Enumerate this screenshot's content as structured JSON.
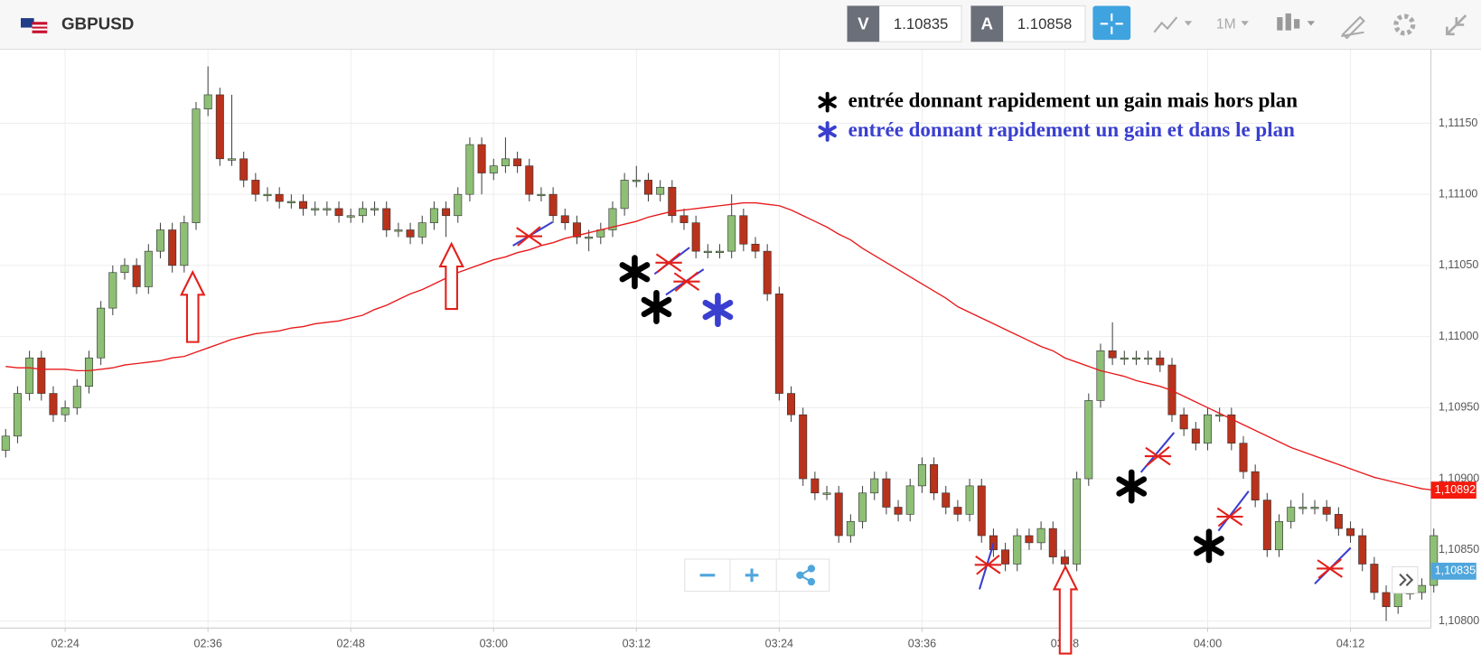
{
  "header": {
    "symbol": "GBPUSD",
    "sell_label": "V",
    "sell_price": "1.10835",
    "buy_label": "A",
    "buy_price": "1.10858",
    "timeframe": "1M"
  },
  "chart_data": {
    "type": "candlestick",
    "annotations": [
      {
        "text": "entrée donnant rapidement un gain mais hors plan",
        "color": "#000000"
      },
      {
        "text": "entrée donnant rapidement un gain et dans le plan",
        "color": "#3a3fd0"
      }
    ],
    "categories": [
      null,
      null,
      null,
      null,
      null,
      "02:24",
      null,
      null,
      null,
      null,
      null,
      null,
      null,
      null,
      null,
      null,
      null,
      "02:36",
      null,
      null,
      null,
      null,
      null,
      null,
      null,
      null,
      null,
      null,
      null,
      "02:48",
      null,
      null,
      null,
      null,
      null,
      null,
      null,
      null,
      null,
      null,
      null,
      "03:00",
      null,
      null,
      null,
      null,
      null,
      null,
      null,
      null,
      null,
      null,
      null,
      "03:12",
      null,
      null,
      null,
      null,
      null,
      null,
      null,
      null,
      null,
      null,
      null,
      "03:24",
      null,
      null,
      null,
      null,
      null,
      null,
      null,
      null,
      null,
      null,
      null,
      "03:36",
      null,
      null,
      null,
      null,
      null,
      null,
      null,
      null,
      null,
      null,
      null,
      "03:48",
      null,
      null,
      null,
      null,
      null,
      null,
      null,
      null,
      null,
      null,
      null,
      "04:00",
      null,
      null,
      null,
      null,
      null,
      null,
      null,
      null,
      null,
      null,
      null,
      "04:12",
      null,
      null,
      null,
      null,
      null,
      null,
      null
    ],
    "open": [
      1.1092,
      1.1093,
      1.1096,
      1.10985,
      1.1096,
      1.10945,
      1.1095,
      1.10965,
      1.10985,
      1.1102,
      1.11045,
      1.1105,
      1.11035,
      1.1106,
      1.11075,
      1.1105,
      1.1108,
      1.1116,
      1.1117,
      1.11125,
      1.11125,
      1.1111,
      1.111,
      1.111,
      1.11095,
      1.11095,
      1.1109,
      1.1109,
      1.1109,
      1.11085,
      1.11085,
      1.1109,
      1.1109,
      1.11075,
      1.11075,
      1.1107,
      1.1108,
      1.1109,
      1.11085,
      1.111,
      1.11135,
      1.11115,
      1.1112,
      1.11125,
      1.1112,
      1.111,
      1.111,
      1.11085,
      1.1108,
      1.1107,
      1.1107,
      1.11075,
      1.1109,
      1.1111,
      1.1111,
      1.111,
      1.11105,
      1.11085,
      1.1108,
      1.1106,
      1.1106,
      1.1106,
      1.11085,
      1.11065,
      1.1106,
      1.1103,
      1.1096,
      1.10945,
      1.109,
      1.1089,
      1.1089,
      1.1086,
      1.1087,
      1.1089,
      1.109,
      1.1088,
      1.10875,
      1.10895,
      1.1091,
      1.1089,
      1.1088,
      1.10875,
      1.10895,
      1.1086,
      1.1085,
      1.1084,
      1.1086,
      1.10855,
      1.10865,
      1.10845,
      1.1084,
      1.109,
      1.10955,
      1.1099,
      1.10985,
      1.10985,
      1.10985,
      1.10985,
      1.1098,
      1.10945,
      1.10935,
      1.10925,
      1.10945,
      1.10945,
      1.10925,
      1.10905,
      1.10885,
      1.1085,
      1.1087,
      1.1088,
      1.1088,
      1.1088,
      1.10875,
      1.10865,
      1.1086,
      1.1084,
      1.1082,
      1.1081,
      1.1082,
      1.1082,
      1.10825
    ],
    "high": [
      1.10935,
      1.10965,
      1.1099,
      1.1099,
      1.10965,
      1.10955,
      1.1097,
      1.1099,
      1.11025,
      1.1105,
      1.11055,
      1.11055,
      1.11065,
      1.1108,
      1.1108,
      1.11085,
      1.11165,
      1.1119,
      1.11175,
      1.1117,
      1.1113,
      1.11115,
      1.11105,
      1.11105,
      1.111,
      1.111,
      1.11095,
      1.11095,
      1.11095,
      1.1109,
      1.11095,
      1.11095,
      1.11095,
      1.1108,
      1.1108,
      1.11085,
      1.11095,
      1.11095,
      1.11105,
      1.1114,
      1.1114,
      1.11125,
      1.1114,
      1.1113,
      1.11125,
      1.11105,
      1.11105,
      1.1109,
      1.11085,
      1.11075,
      1.1108,
      1.11095,
      1.11115,
      1.1112,
      1.11115,
      1.1111,
      1.1111,
      1.1109,
      1.11085,
      1.11065,
      1.11065,
      1.111,
      1.1109,
      1.1107,
      1.11065,
      1.11035,
      1.10965,
      1.1095,
      1.10905,
      1.10895,
      1.10895,
      1.10875,
      1.10895,
      1.10905,
      1.10905,
      1.10885,
      1.109,
      1.10915,
      1.10915,
      1.10895,
      1.10885,
      1.109,
      1.109,
      1.10865,
      1.10855,
      1.10865,
      1.10865,
      1.1087,
      1.1087,
      1.1085,
      1.10905,
      1.1096,
      1.10995,
      1.1101,
      1.1099,
      1.1099,
      1.1099,
      1.1099,
      1.10985,
      1.1095,
      1.1094,
      1.1095,
      1.1095,
      1.1095,
      1.1093,
      1.1091,
      1.1089,
      1.10875,
      1.10885,
      1.1089,
      1.10885,
      1.10885,
      1.1088,
      1.1087,
      1.10865,
      1.10845,
      1.10825,
      1.10825,
      1.10825,
      1.1083,
      1.10865
    ],
    "low": [
      1.10915,
      1.10925,
      1.10955,
      1.10955,
      1.1094,
      1.1094,
      1.10945,
      1.1096,
      1.1098,
      1.11015,
      1.1104,
      1.1103,
      1.1103,
      1.11055,
      1.11045,
      1.11045,
      1.11075,
      1.11155,
      1.1112,
      1.1112,
      1.11105,
      1.11095,
      1.11095,
      1.1109,
      1.1109,
      1.11085,
      1.11085,
      1.11085,
      1.1108,
      1.1108,
      1.1108,
      1.11085,
      1.1107,
      1.1107,
      1.11065,
      1.11065,
      1.11075,
      1.1107,
      1.1108,
      1.11095,
      1.111,
      1.1111,
      1.11115,
      1.11115,
      1.11095,
      1.11095,
      1.1108,
      1.11075,
      1.11065,
      1.1106,
      1.11065,
      1.1107,
      1.11085,
      1.11105,
      1.11095,
      1.11095,
      1.1108,
      1.11075,
      1.11055,
      1.11055,
      1.11055,
      1.11055,
      1.1106,
      1.11055,
      1.11025,
      1.10955,
      1.1094,
      1.10895,
      1.10885,
      1.10885,
      1.10855,
      1.10855,
      1.10865,
      1.10885,
      1.10875,
      1.1087,
      1.1087,
      1.1089,
      1.10885,
      1.10875,
      1.1087,
      1.1087,
      1.10855,
      1.10845,
      1.10835,
      1.10835,
      1.1085,
      1.1085,
      1.1084,
      1.10835,
      1.10835,
      1.10895,
      1.1095,
      1.1098,
      1.1098,
      1.1098,
      1.1098,
      1.10975,
      1.1094,
      1.1093,
      1.1092,
      1.1092,
      1.1094,
      1.1092,
      1.109,
      1.1088,
      1.10845,
      1.10845,
      1.10865,
      1.10875,
      1.10875,
      1.1087,
      1.1086,
      1.10855,
      1.10835,
      1.10815,
      1.108,
      1.10805,
      1.10815,
      1.10815,
      1.1082
    ],
    "close": [
      1.1093,
      1.1096,
      1.10985,
      1.1096,
      1.10945,
      1.1095,
      1.10965,
      1.10985,
      1.1102,
      1.11045,
      1.1105,
      1.11035,
      1.1106,
      1.11075,
      1.1105,
      1.1108,
      1.1116,
      1.1117,
      1.11125,
      1.11125,
      1.1111,
      1.111,
      1.111,
      1.11095,
      1.11095,
      1.1109,
      1.1109,
      1.1109,
      1.11085,
      1.11085,
      1.1109,
      1.1109,
      1.11075,
      1.11075,
      1.1107,
      1.1108,
      1.1109,
      1.11085,
      1.111,
      1.11135,
      1.11115,
      1.1112,
      1.11125,
      1.1112,
      1.111,
      1.111,
      1.11085,
      1.1108,
      1.1107,
      1.1107,
      1.11075,
      1.1109,
      1.1111,
      1.1111,
      1.111,
      1.11105,
      1.11085,
      1.1108,
      1.1106,
      1.1106,
      1.1106,
      1.11085,
      1.11065,
      1.1106,
      1.1103,
      1.1096,
      1.10945,
      1.109,
      1.1089,
      1.1089,
      1.1086,
      1.1087,
      1.1089,
      1.109,
      1.1088,
      1.10875,
      1.10895,
      1.1091,
      1.1089,
      1.1088,
      1.10875,
      1.10895,
      1.1086,
      1.1085,
      1.1084,
      1.1086,
      1.10855,
      1.10865,
      1.10845,
      1.1084,
      1.109,
      1.10955,
      1.1099,
      1.10985,
      1.10985,
      1.10985,
      1.10985,
      1.1098,
      1.10945,
      1.10935,
      1.10925,
      1.10945,
      1.10945,
      1.10925,
      1.10905,
      1.10885,
      1.1085,
      1.1087,
      1.1088,
      1.1088,
      1.1088,
      1.10875,
      1.10865,
      1.1086,
      1.1084,
      1.1082,
      1.1081,
      1.1082,
      1.1082,
      1.10825,
      1.1086
    ],
    "up_color": "#8dbf74",
    "down_color": "#b8321c",
    "moving_average": {
      "color": "#e8191b",
      "values": [
        1.10979,
        1.10978,
        1.10978,
        1.10977,
        1.10977,
        1.10977,
        1.10976,
        1.10976,
        1.10977,
        1.10978,
        1.1098,
        1.10981,
        1.10982,
        1.10983,
        1.10985,
        1.10986,
        1.10989,
        1.10992,
        1.10995,
        1.10998,
        1.11,
        1.11002,
        1.11003,
        1.11004,
        1.11006,
        1.11007,
        1.11009,
        1.1101,
        1.11011,
        1.11013,
        1.11015,
        1.11019,
        1.11022,
        1.11026,
        1.1103,
        1.11033,
        1.11037,
        1.11041,
        1.11045,
        1.11048,
        1.11051,
        1.11054,
        1.11056,
        1.11059,
        1.11061,
        1.11064,
        1.11066,
        1.11069,
        1.11071,
        1.11073,
        1.11075,
        1.11077,
        1.11079,
        1.11081,
        1.11084,
        1.11086,
        1.11088,
        1.11089,
        1.1109,
        1.11091,
        1.11092,
        1.11093,
        1.11094,
        1.11094,
        1.11093,
        1.11092,
        1.11089,
        1.11085,
        1.11081,
        1.11077,
        1.11072,
        1.11068,
        1.11062,
        1.11057,
        1.11052,
        1.11047,
        1.11042,
        1.11037,
        1.11032,
        1.11027,
        1.11021,
        1.11017,
        1.11013,
        1.11009,
        1.11005,
        1.11001,
        1.10997,
        1.10993,
        1.1099,
        1.10985,
        1.10982,
        1.10979,
        1.10976,
        1.10974,
        1.10972,
        1.10969,
        1.10967,
        1.10965,
        1.10962,
        1.10958,
        1.10954,
        1.1095,
        1.10946,
        1.10942,
        1.10938,
        1.10934,
        1.1093,
        1.10926,
        1.10922,
        1.10919,
        1.10916,
        1.10913,
        1.1091,
        1.10907,
        1.10904,
        1.10901,
        1.10899,
        1.10897,
        1.10895,
        1.10893,
        1.10892
      ]
    },
    "price_markers": [
      {
        "value": 1.10892,
        "label": "1,10892",
        "color": "#f41a0c"
      },
      {
        "value": 1.10835,
        "label": "1,10835",
        "color": "#4fa6dc"
      }
    ],
    "ylim": [
      1.10795,
      1.11202
    ],
    "yticks": [
      {
        "value": 1.108,
        "label": "1,10800"
      },
      {
        "value": 1.1085,
        "label": "1,10850"
      },
      {
        "value": 1.109,
        "label": "1,10900"
      },
      {
        "value": 1.1095,
        "label": "1,10950"
      },
      {
        "value": 1.11,
        "label": "1,11000"
      },
      {
        "value": 1.1105,
        "label": "1,11050"
      },
      {
        "value": 1.111,
        "label": "1,11100"
      },
      {
        "value": 1.1115,
        "label": "1,11150"
      }
    ],
    "grid": true
  }
}
